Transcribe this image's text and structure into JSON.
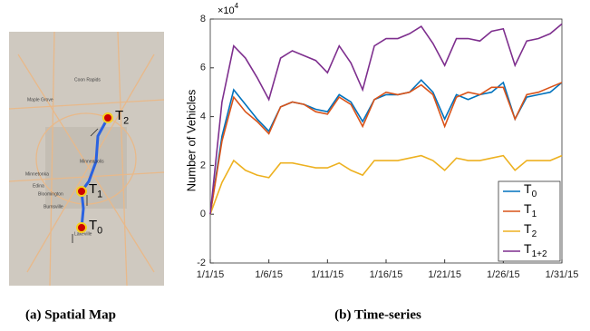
{
  "map": {
    "markers": [
      {
        "name": "T",
        "subscript": "2"
      },
      {
        "name": "T",
        "subscript": "1"
      },
      {
        "name": "T",
        "subscript": "0"
      }
    ],
    "places": [
      "Coon Rapids",
      "Maple Grove",
      "Minneapolis",
      "Minnetonka",
      "Edina",
      "Bloomington",
      "Burnsville",
      "Lakeville"
    ]
  },
  "captions": [
    "(a) Spatial Map",
    "(b) Time-series"
  ],
  "chart_data": {
    "type": "line",
    "y_label": "Number of Vehicles",
    "y_multiplier": "×10",
    "y_multiplier_exp": "4",
    "categories": [
      "1/1/15",
      null,
      null,
      null,
      null,
      "1/6/15",
      null,
      null,
      null,
      null,
      "1/11/15",
      null,
      null,
      null,
      null,
      "1/16/15",
      null,
      null,
      null,
      null,
      "1/21/15",
      null,
      null,
      null,
      null,
      "1/26/15",
      null,
      null,
      null,
      null,
      "1/31/15"
    ],
    "ylim": [
      -2,
      8
    ],
    "yticks": [
      -2,
      0,
      2,
      4,
      6,
      8
    ],
    "grid": false,
    "legend": "lower right",
    "series": [
      {
        "name": "T",
        "subscript": "0",
        "color": "#0072bd",
        "values": [
          0,
          3.2,
          5.1,
          4.5,
          3.9,
          3.4,
          4.4,
          4.6,
          4.5,
          4.3,
          4.2,
          4.9,
          4.6,
          3.8,
          4.7,
          4.9,
          4.9,
          5.0,
          5.5,
          5.0,
          3.9,
          4.9,
          4.7,
          4.9,
          5.0,
          5.4,
          3.9,
          4.8,
          4.9,
          5.0,
          5.4
        ]
      },
      {
        "name": "T",
        "subscript": "1",
        "color": "#d95319",
        "values": [
          0,
          3.0,
          4.8,
          4.2,
          3.8,
          3.3,
          4.4,
          4.6,
          4.5,
          4.2,
          4.1,
          4.8,
          4.5,
          3.6,
          4.7,
          5.0,
          4.9,
          5.0,
          5.3,
          4.9,
          3.6,
          4.8,
          5.0,
          4.9,
          5.2,
          5.2,
          3.9,
          4.9,
          5.0,
          5.2,
          5.4
        ]
      },
      {
        "name": "T",
        "subscript": "2",
        "color": "#edb120",
        "values": [
          0,
          1.3,
          2.2,
          1.8,
          1.6,
          1.5,
          2.1,
          2.1,
          2.0,
          1.9,
          1.9,
          2.1,
          1.8,
          1.6,
          2.2,
          2.2,
          2.2,
          2.3,
          2.4,
          2.2,
          1.8,
          2.3,
          2.2,
          2.2,
          2.3,
          2.4,
          1.8,
          2.2,
          2.2,
          2.2,
          2.4
        ]
      },
      {
        "name": "T",
        "subscript": "1+2",
        "color": "#7e2f8e",
        "values": [
          0,
          4.6,
          6.9,
          6.4,
          5.6,
          4.7,
          6.4,
          6.7,
          6.5,
          6.3,
          5.8,
          6.9,
          6.2,
          5.1,
          6.9,
          7.2,
          7.2,
          7.4,
          7.7,
          7.0,
          6.1,
          7.2,
          7.2,
          7.1,
          7.5,
          7.6,
          6.1,
          7.1,
          7.2,
          7.4,
          7.8
        ]
      }
    ]
  }
}
